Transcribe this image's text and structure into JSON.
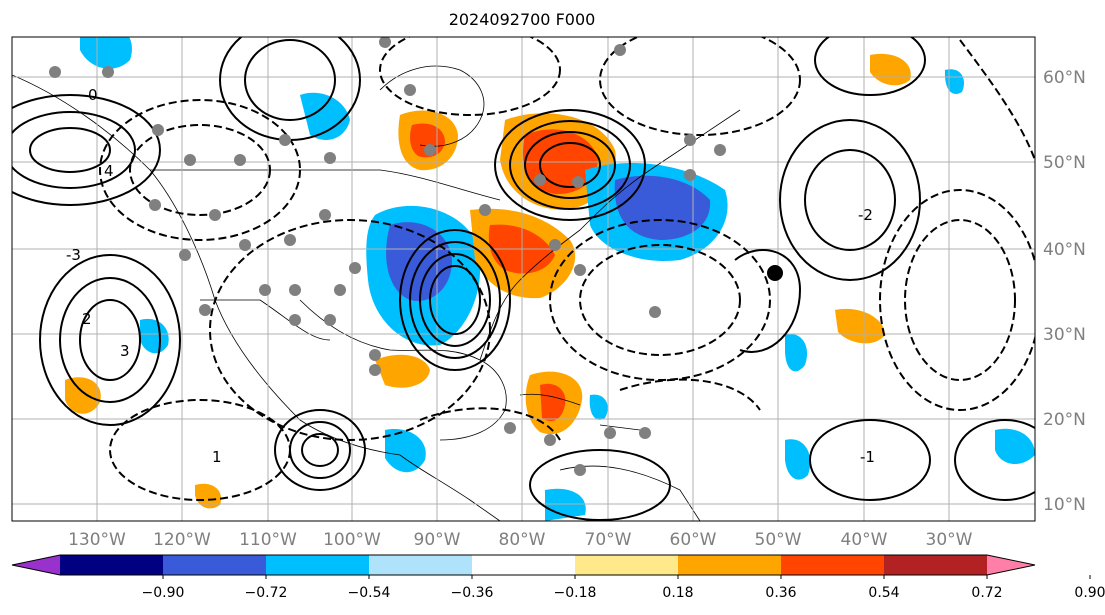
{
  "title": "2024092700 F000",
  "map": {
    "latitude_labels": [
      "60°N",
      "50°N",
      "40°N",
      "30°N",
      "20°N",
      "10°N"
    ],
    "longitude_labels": [
      "130°W",
      "120°W",
      "110°W",
      "100°W",
      "90°W",
      "80°W",
      "70°W",
      "60°W",
      "50°W",
      "40°W",
      "30°W"
    ],
    "contour_labels": [
      "0",
      "-2",
      "3",
      "-1",
      "2",
      "-3",
      "1",
      "4"
    ],
    "colors": {
      "positive_strong": "#ff4500",
      "positive_mid": "#ffa500",
      "negative_mid": "#00bfff",
      "negative_strong": "#3a5bd9",
      "station_dots": "#808080",
      "contour_line": "#000000"
    }
  },
  "colorbar": {
    "tick_labels": [
      "−0.90",
      "−0.72",
      "−0.54",
      "−0.36",
      "−0.18",
      "0.18",
      "0.36",
      "0.54",
      "0.72",
      "0.90"
    ],
    "colors": [
      "#9932cc",
      "#000080",
      "#3a5bd9",
      "#00bfff",
      "#afe3fb",
      "#ffffff",
      "#ffe98a",
      "#ffa500",
      "#ff4500",
      "#b22222",
      "#ff7fa8"
    ],
    "extend": "both"
  }
}
